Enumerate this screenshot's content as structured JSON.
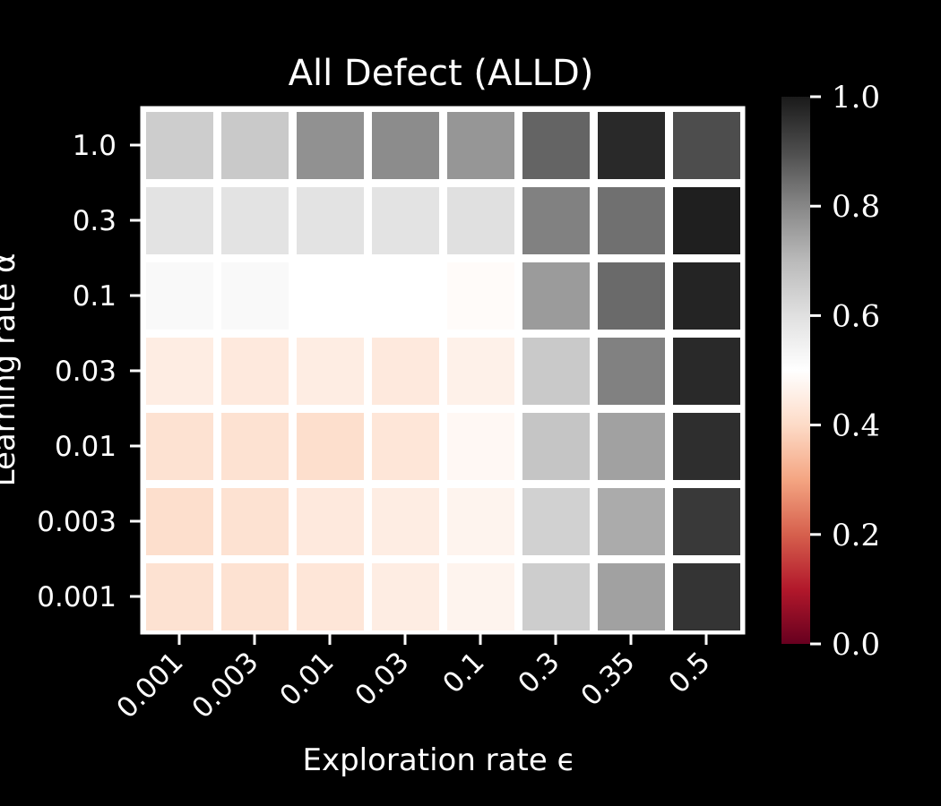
{
  "chart_data": {
    "type": "heatmap",
    "title": "All Defect (ALLD)",
    "xlabel": "Exploration rate ϵ",
    "ylabel": "Learning rate α",
    "x_categories": [
      "0.001",
      "0.003",
      "0.01",
      "0.03",
      "0.1",
      "0.3",
      "0.35",
      "0.5"
    ],
    "y_categories": [
      "1.0",
      "0.3",
      "0.1",
      "0.03",
      "0.01",
      "0.003",
      "0.001"
    ],
    "values": [
      [
        0.65,
        0.66,
        0.78,
        0.79,
        0.77,
        0.86,
        0.97,
        0.9
      ],
      [
        0.59,
        0.59,
        0.59,
        0.59,
        0.6,
        0.81,
        0.84,
        0.99
      ],
      [
        0.52,
        0.52,
        0.5,
        0.5,
        0.49,
        0.76,
        0.85,
        0.98
      ],
      [
        0.45,
        0.44,
        0.45,
        0.44,
        0.46,
        0.66,
        0.81,
        0.97
      ],
      [
        0.42,
        0.42,
        0.41,
        0.43,
        0.48,
        0.67,
        0.75,
        0.96
      ],
      [
        0.41,
        0.42,
        0.44,
        0.45,
        0.47,
        0.64,
        0.73,
        0.94
      ],
      [
        0.42,
        0.42,
        0.43,
        0.45,
        0.47,
        0.65,
        0.75,
        0.95
      ]
    ],
    "colorbar": {
      "range": [
        0.0,
        1.0
      ],
      "ticks": [
        "0.0",
        "0.2",
        "0.4",
        "0.6",
        "0.8",
        "1.0"
      ],
      "colormap": "RdGy",
      "colors": [
        "#67001f",
        "#b2182b",
        "#d6604d",
        "#f4a582",
        "#fddbc7",
        "#ffffff",
        "#e0e0e0",
        "#bababa",
        "#878787",
        "#4d4d4d",
        "#1a1a1a"
      ]
    },
    "grid": false,
    "legend": "right colorbar"
  }
}
